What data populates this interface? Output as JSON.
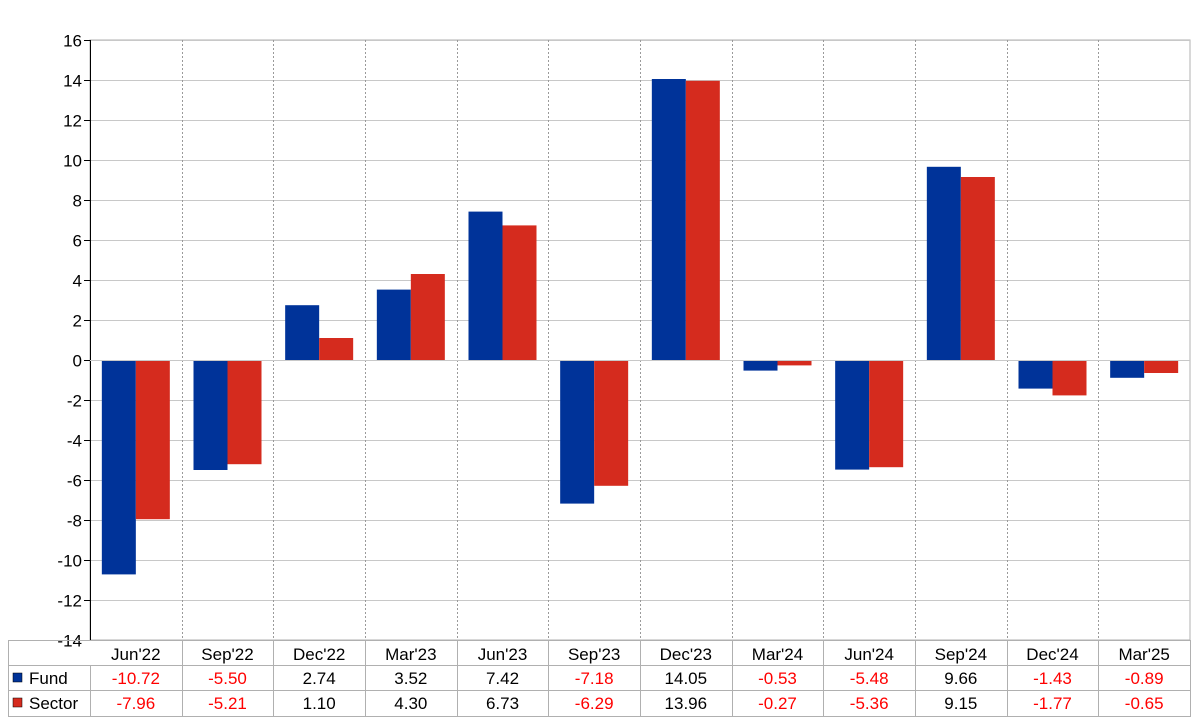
{
  "chart_data": {
    "type": "bar",
    "categories": [
      "Jun'22",
      "Sep'22",
      "Dec'22",
      "Mar'23",
      "Jun'23",
      "Sep'23",
      "Dec'23",
      "Mar'24",
      "Jun'24",
      "Sep'24",
      "Dec'24",
      "Mar'25"
    ],
    "series": [
      {
        "name": "Fund",
        "color": "#003399",
        "values": [
          -10.72,
          -5.5,
          2.74,
          3.52,
          7.42,
          -7.18,
          14.05,
          -0.53,
          -5.48,
          9.66,
          -1.43,
          -0.89
        ],
        "labels": [
          "-10.72",
          "-5.50",
          "2.74",
          "3.52",
          "7.42",
          "-7.18",
          "14.05",
          "-0.53",
          "-5.48",
          "9.66",
          "-1.43",
          "-0.89"
        ]
      },
      {
        "name": "Sector",
        "color": "#d52b1e",
        "values": [
          -7.96,
          -5.21,
          1.1,
          4.3,
          6.73,
          -6.29,
          13.96,
          -0.27,
          -5.36,
          9.15,
          -1.77,
          -0.65
        ],
        "labels": [
          "-7.96",
          "-5.21",
          "1.10",
          "4.30",
          "6.73",
          "-6.29",
          "13.96",
          "-0.27",
          "-5.36",
          "9.15",
          "-1.77",
          "-0.65"
        ]
      }
    ],
    "ylim": [
      -14,
      16
    ],
    "ytick_step": 2,
    "grid": true,
    "legend": "bottom-left data table",
    "negative_value_color": "#ff0000",
    "positive_value_color": "#000000"
  }
}
